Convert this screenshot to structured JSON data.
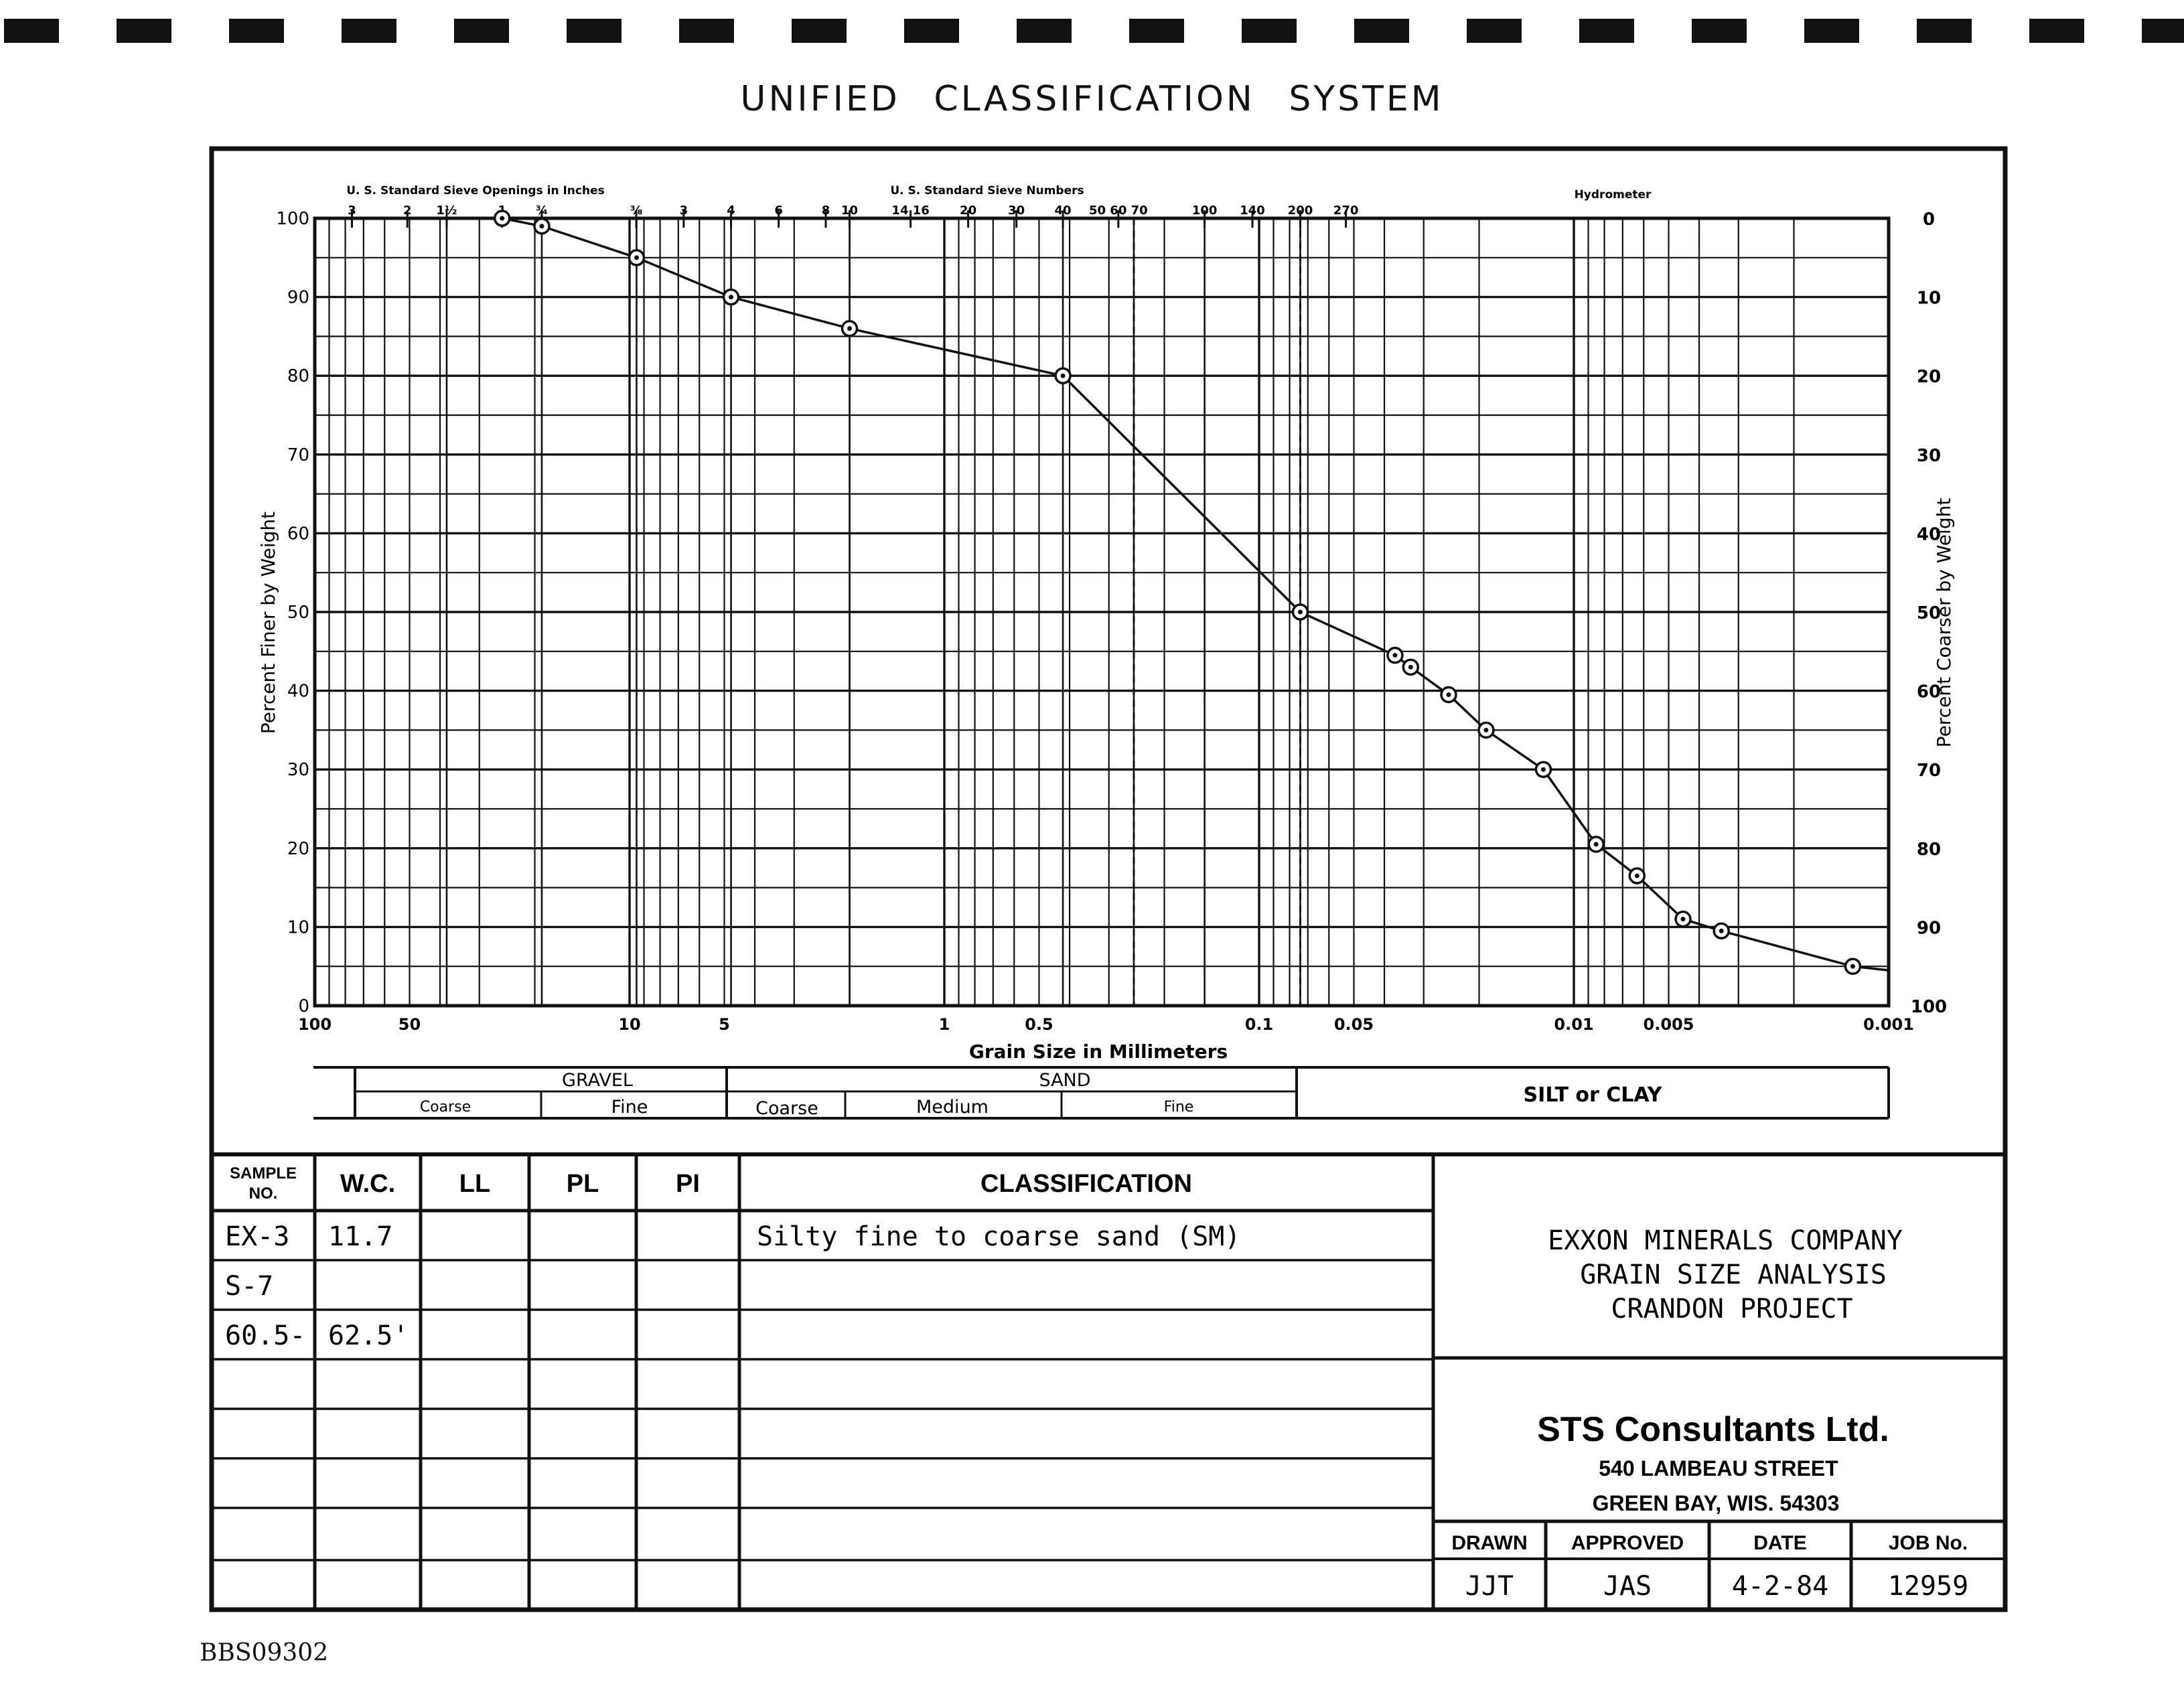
{
  "page_title": "UNIFIED   CLASSIFICATION   SYSTEM",
  "top_scale": {
    "sieve_openings_label": "U. S. Standard Sieve Openings in Inches",
    "sieve_openings_ticks": [
      "3",
      "2",
      "1½",
      "1",
      "¾",
      "⅜"
    ],
    "sieve_numbers_label": "U. S. Standard Sieve Numbers",
    "sieve_numbers_ticks": [
      "3",
      "4",
      "6",
      "8",
      "10",
      "14 16",
      "20",
      "30",
      "40",
      "50 60 70",
      "100",
      "140",
      "200",
      "270"
    ],
    "hydrometer_label": "Hydrometer"
  },
  "chart_data": {
    "type": "line",
    "title": "",
    "xlabel": "Grain Size in Millimeters",
    "ylabel": "Percent Finer by Weight",
    "y2label": "Percent Coarser by Weight",
    "x_scale": "log",
    "x_reversed": true,
    "xlim": [
      100,
      0.001
    ],
    "ylim": [
      0,
      100
    ],
    "x_tick_labels": [
      "100",
      "50",
      "10",
      "5",
      "1",
      "0.5",
      "0.1",
      "0.05",
      "0.01",
      "0.005",
      "0.001"
    ],
    "x_tick_values": [
      100,
      50,
      10,
      5,
      1,
      0.5,
      0.1,
      0.05,
      0.01,
      0.005,
      0.001
    ],
    "y_tick_labels": [
      "0",
      "10",
      "20",
      "30",
      "40",
      "50",
      "60",
      "70",
      "80",
      "90",
      "100"
    ],
    "y2_tick_labels": [
      "100",
      "90",
      "80",
      "70",
      "60",
      "50",
      "40",
      "30",
      "20",
      "10",
      "0"
    ],
    "dashed_reference_x": [
      0.25,
      0.074
    ],
    "grid": true,
    "series": [
      {
        "points": [
          [
            25.4,
            100
          ],
          [
            19.0,
            99
          ],
          [
            9.5,
            95
          ],
          [
            4.76,
            90
          ],
          [
            2.0,
            86
          ],
          [
            0.42,
            80
          ],
          [
            0.074,
            50
          ],
          [
            0.037,
            44.5
          ],
          [
            0.033,
            43
          ],
          [
            0.025,
            39.5
          ],
          [
            0.019,
            35
          ],
          [
            0.0125,
            30
          ],
          [
            0.0085,
            20.5
          ],
          [
            0.0063,
            16.5
          ],
          [
            0.0045,
            11
          ],
          [
            0.0034,
            9.5
          ],
          [
            0.0013,
            5
          ]
        ]
      }
    ]
  },
  "soil_bands": {
    "gravel": "GRAVEL",
    "gravel_coarse": "Coarse",
    "gravel_fine": "Fine",
    "sand": "SAND",
    "sand_coarse": "Coarse",
    "sand_medium": "Medium",
    "sand_fine": "Fine",
    "silt_clay": "SILT or CLAY"
  },
  "sample_table": {
    "headers": [
      "SAMPLE NO.",
      "W.C.",
      "LL",
      "PL",
      "PI",
      "CLASSIFICATION"
    ],
    "header_sample_line1": "SAMPLE",
    "header_sample_line2": "NO.",
    "rows": [
      [
        "EX-3",
        "11.7",
        "",
        "",
        "",
        "Silty fine to coarse sand (SM)"
      ],
      [
        "S-7",
        "",
        "",
        "",
        "",
        ""
      ],
      [
        "60.5-",
        "62.5'",
        "",
        "",
        "",
        ""
      ],
      [
        "",
        "",
        "",
        "",
        "",
        ""
      ],
      [
        "",
        "",
        "",
        "",
        "",
        ""
      ],
      [
        "",
        "",
        "",
        "",
        "",
        ""
      ],
      [
        "",
        "",
        "",
        "",
        "",
        ""
      ],
      [
        "",
        "",
        "",
        "",
        "",
        ""
      ]
    ]
  },
  "project_block": {
    "line1": "EXXON MINERALS COMPANY",
    "line2": "GRAIN SIZE ANALYSIS",
    "line3": "CRANDON PROJECT"
  },
  "company_block": {
    "name": "STS Consultants Ltd.",
    "street": "540 LAMBEAU STREET",
    "city": "GREEN BAY,  WIS.  54303"
  },
  "signoff": {
    "headers": [
      "DRAWN",
      "APPROVED",
      "DATE",
      "JOB No."
    ],
    "values": [
      "JJT",
      "JAS",
      "4-2-84",
      "12959"
    ]
  },
  "footer_id": "BBS09302"
}
